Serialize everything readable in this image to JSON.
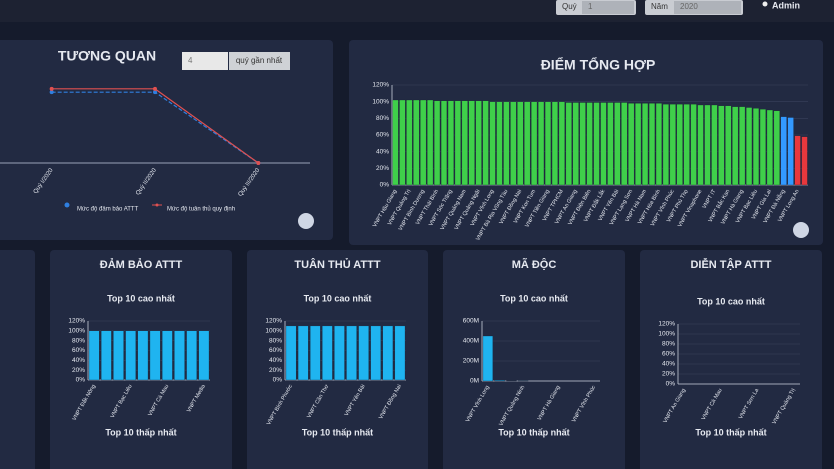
{
  "header": {
    "quarter_label": "Quý",
    "quarter": "1",
    "year_label": "Năm",
    "year": "2020",
    "user": "Admin"
  },
  "controls": {
    "select": "4",
    "button": "quý gần nhất"
  },
  "chart_data": [
    {
      "type": "line",
      "title": "TƯƠNG QUAN",
      "categories": [
        "Quý I/2020",
        "Quý II/2020",
        "Quý III/2020"
      ],
      "ylim": [
        0,
        120
      ],
      "series": [
        {
          "name": "Mức độ đảm bảo ATTT",
          "color": "#2f7fe0",
          "values": [
            85,
            85,
            0
          ]
        },
        {
          "name": "Mức độ tuân thủ quy định",
          "color": "#e05050",
          "values": [
            89,
            89,
            0
          ]
        }
      ]
    },
    {
      "type": "bar",
      "title": "ĐIỂM TỔNG HỢP",
      "categories": [
        "VNPT Hậu Giang",
        null,
        "VNPT Quảng Trị",
        null,
        "VNPT Bình Dương",
        null,
        "VNPT Thái Bình",
        null,
        "VNPT Sóc Trăng",
        null,
        "VNPT Quảng Nam",
        null,
        "VNPT Quảng Ngãi",
        null,
        "VNPT Vĩnh Long",
        null,
        "VNPT Bà Rịa Vũng Tàu",
        null,
        "VNPT Đồng Nai",
        null,
        "VNPT Kon Tum",
        null,
        "VNPT Tiền Giang",
        null,
        "VNPT TPHCM",
        null,
        "VNPT An Giang",
        null,
        "VNPT Điện Biên",
        null,
        "VNPT Đắk Lắk",
        null,
        "VNPT Yên Bái",
        null,
        "VNPT Lạng Sơn",
        null,
        "VNPT Hà Nam",
        null,
        "VNPT Hòa Bình",
        null,
        "VNPT Vĩnh Phúc",
        null,
        "VNPT Phú Thọ",
        null,
        "VNPT Vinaphone",
        null,
        "VNPT IT",
        null,
        "VNPT Bắc Kạn",
        null,
        "VNPT Hà Giang",
        null,
        "VNPT Bạc Liêu",
        null,
        "VNPT Gia Lai",
        null,
        "VNPT Đà Nẵng",
        null,
        "VNPT Long An",
        null
      ],
      "values": [
        102,
        102,
        102,
        102,
        102,
        102,
        101,
        101,
        101,
        101,
        101,
        101,
        101,
        101,
        100,
        100,
        100,
        100,
        100,
        100,
        100,
        100,
        100,
        100,
        100,
        99,
        99,
        99,
        99,
        99,
        99,
        99,
        99,
        99,
        98,
        98,
        98,
        98,
        98,
        97,
        97,
        97,
        97,
        97,
        96,
        96,
        96,
        95,
        95,
        94,
        94,
        93,
        92,
        91,
        90,
        89,
        82,
        81,
        59,
        58
      ],
      "colors": [
        "#3fcf4a",
        "#3fcf4a",
        "#3fcf4a",
        "#3fcf4a",
        "#3fcf4a",
        "#3fcf4a",
        "#3fcf4a",
        "#3fcf4a",
        "#3fcf4a",
        "#3fcf4a",
        "#3fcf4a",
        "#3fcf4a",
        "#3fcf4a",
        "#3fcf4a",
        "#3fcf4a",
        "#3fcf4a",
        "#3fcf4a",
        "#3fcf4a",
        "#3fcf4a",
        "#3fcf4a",
        "#3fcf4a",
        "#3fcf4a",
        "#3fcf4a",
        "#3fcf4a",
        "#3fcf4a",
        "#3fcf4a",
        "#3fcf4a",
        "#3fcf4a",
        "#3fcf4a",
        "#3fcf4a",
        "#3fcf4a",
        "#3fcf4a",
        "#3fcf4a",
        "#3fcf4a",
        "#3fcf4a",
        "#3fcf4a",
        "#3fcf4a",
        "#3fcf4a",
        "#3fcf4a",
        "#3fcf4a",
        "#3fcf4a",
        "#3fcf4a",
        "#3fcf4a",
        "#3fcf4a",
        "#3fcf4a",
        "#3fcf4a",
        "#3fcf4a",
        "#3fcf4a",
        "#3fcf4a",
        "#3fcf4a",
        "#3fcf4a",
        "#3fcf4a",
        "#3fcf4a",
        "#3fcf4a",
        "#3fcf4a",
        "#3fcf4a",
        "#3399ff",
        "#3399ff",
        "#e8383d",
        "#e8383d"
      ],
      "ylim": [
        0,
        120
      ],
      "yticks": [
        {
          "value": 0,
          "label": "0%"
        },
        {
          "value": 20,
          "label": "20%"
        },
        {
          "value": 40,
          "label": "40%"
        },
        {
          "value": 60,
          "label": "60%"
        },
        {
          "value": 80,
          "label": "80%"
        },
        {
          "value": 100,
          "label": "100%"
        },
        {
          "value": 120,
          "label": "120%"
        }
      ],
      "grid": true
    },
    {
      "type": "bar",
      "panel_title": "ĐẢM BẢO ATTT",
      "title": "Top 10 cao nhất",
      "next_title": "Top 10 thấp nhất",
      "categories": [
        "VNPT Đắk Nông",
        null,
        null,
        "VNPT Bạc Liêu",
        null,
        null,
        "VNPT Cà Mau",
        null,
        null,
        "VNPT Media"
      ],
      "values": [
        100,
        100,
        100,
        100,
        100,
        100,
        100,
        100,
        100,
        100
      ],
      "color": "#1fb4f0",
      "ylim": [
        0,
        120
      ],
      "yticks": [
        {
          "value": 0,
          "label": "0%"
        },
        {
          "value": 20,
          "label": "20%"
        },
        {
          "value": 40,
          "label": "40%"
        },
        {
          "value": 60,
          "label": "60%"
        },
        {
          "value": 80,
          "label": "80%"
        },
        {
          "value": 100,
          "label": "100%"
        },
        {
          "value": 120,
          "label": "120%"
        }
      ],
      "grid": true
    },
    {
      "type": "bar",
      "panel_title": "TUÂN THỦ ATTT",
      "title": "Top 10 cao nhất",
      "next_title": "Top 10 thấp nhất",
      "categories": [
        "VNPT Bình Phước",
        null,
        null,
        "VNPT Cần Thơ",
        null,
        null,
        "VNPT Yên Bái",
        null,
        null,
        "VNPT Đồng Nai"
      ],
      "values": [
        110,
        110,
        110,
        110,
        110,
        110,
        110,
        110,
        110,
        110
      ],
      "color": "#1fb4f0",
      "ylim": [
        0,
        120
      ],
      "yticks": [
        {
          "value": 0,
          "label": "0%"
        },
        {
          "value": 20,
          "label": "20%"
        },
        {
          "value": 40,
          "label": "40%"
        },
        {
          "value": 60,
          "label": "60%"
        },
        {
          "value": 80,
          "label": "80%"
        },
        {
          "value": 100,
          "label": "100%"
        },
        {
          "value": 120,
          "label": "120%"
        }
      ],
      "grid": true
    },
    {
      "type": "bar",
      "panel_title": "MÃ ĐỘC",
      "title": "Top 10 cao nhất",
      "next_title": "Top 10 thấp nhất",
      "categories": [
        "VNPT Vĩnh Long",
        null,
        null,
        "VNPT Quảng Ninh",
        null,
        null,
        "VNPT Hà Giang",
        null,
        null,
        "VNPT Vĩnh Phúc"
      ],
      "values": [
        450000000,
        8000000,
        2000000,
        1000000,
        0,
        0,
        0,
        0,
        0,
        0
      ],
      "color": "#1fb4f0",
      "ylim": [
        0,
        600000000
      ],
      "yticks": [
        {
          "value": 0,
          "label": "0M"
        },
        {
          "value": 200000000,
          "label": "200M"
        },
        {
          "value": 400000000,
          "label": "400M"
        },
        {
          "value": 600000000,
          "label": "600M"
        }
      ],
      "grid": true
    },
    {
      "type": "bar",
      "panel_title": "DIỄN TẬP ATTT",
      "title": "Top 10 cao nhất",
      "next_title": "Top 10 thấp nhất",
      "categories": [
        "VNPT An Giang",
        null,
        null,
        "VNPT Cà Mau",
        null,
        null,
        "VNPT Sơn La",
        null,
        null,
        "VNPT Quảng Trị"
      ],
      "values": [
        0,
        0,
        0,
        0,
        0,
        0,
        0,
        0,
        0,
        0
      ],
      "color": "#1fb4f0",
      "ylim": [
        0,
        120
      ],
      "yticks": [
        {
          "value": 0,
          "label": "0%"
        },
        {
          "value": 20,
          "label": "20%"
        },
        {
          "value": 40,
          "label": "40%"
        },
        {
          "value": 60,
          "label": "60%"
        },
        {
          "value": 80,
          "label": "80%"
        },
        {
          "value": 100,
          "label": "100%"
        },
        {
          "value": 120,
          "label": "120%"
        }
      ],
      "grid": true
    }
  ]
}
